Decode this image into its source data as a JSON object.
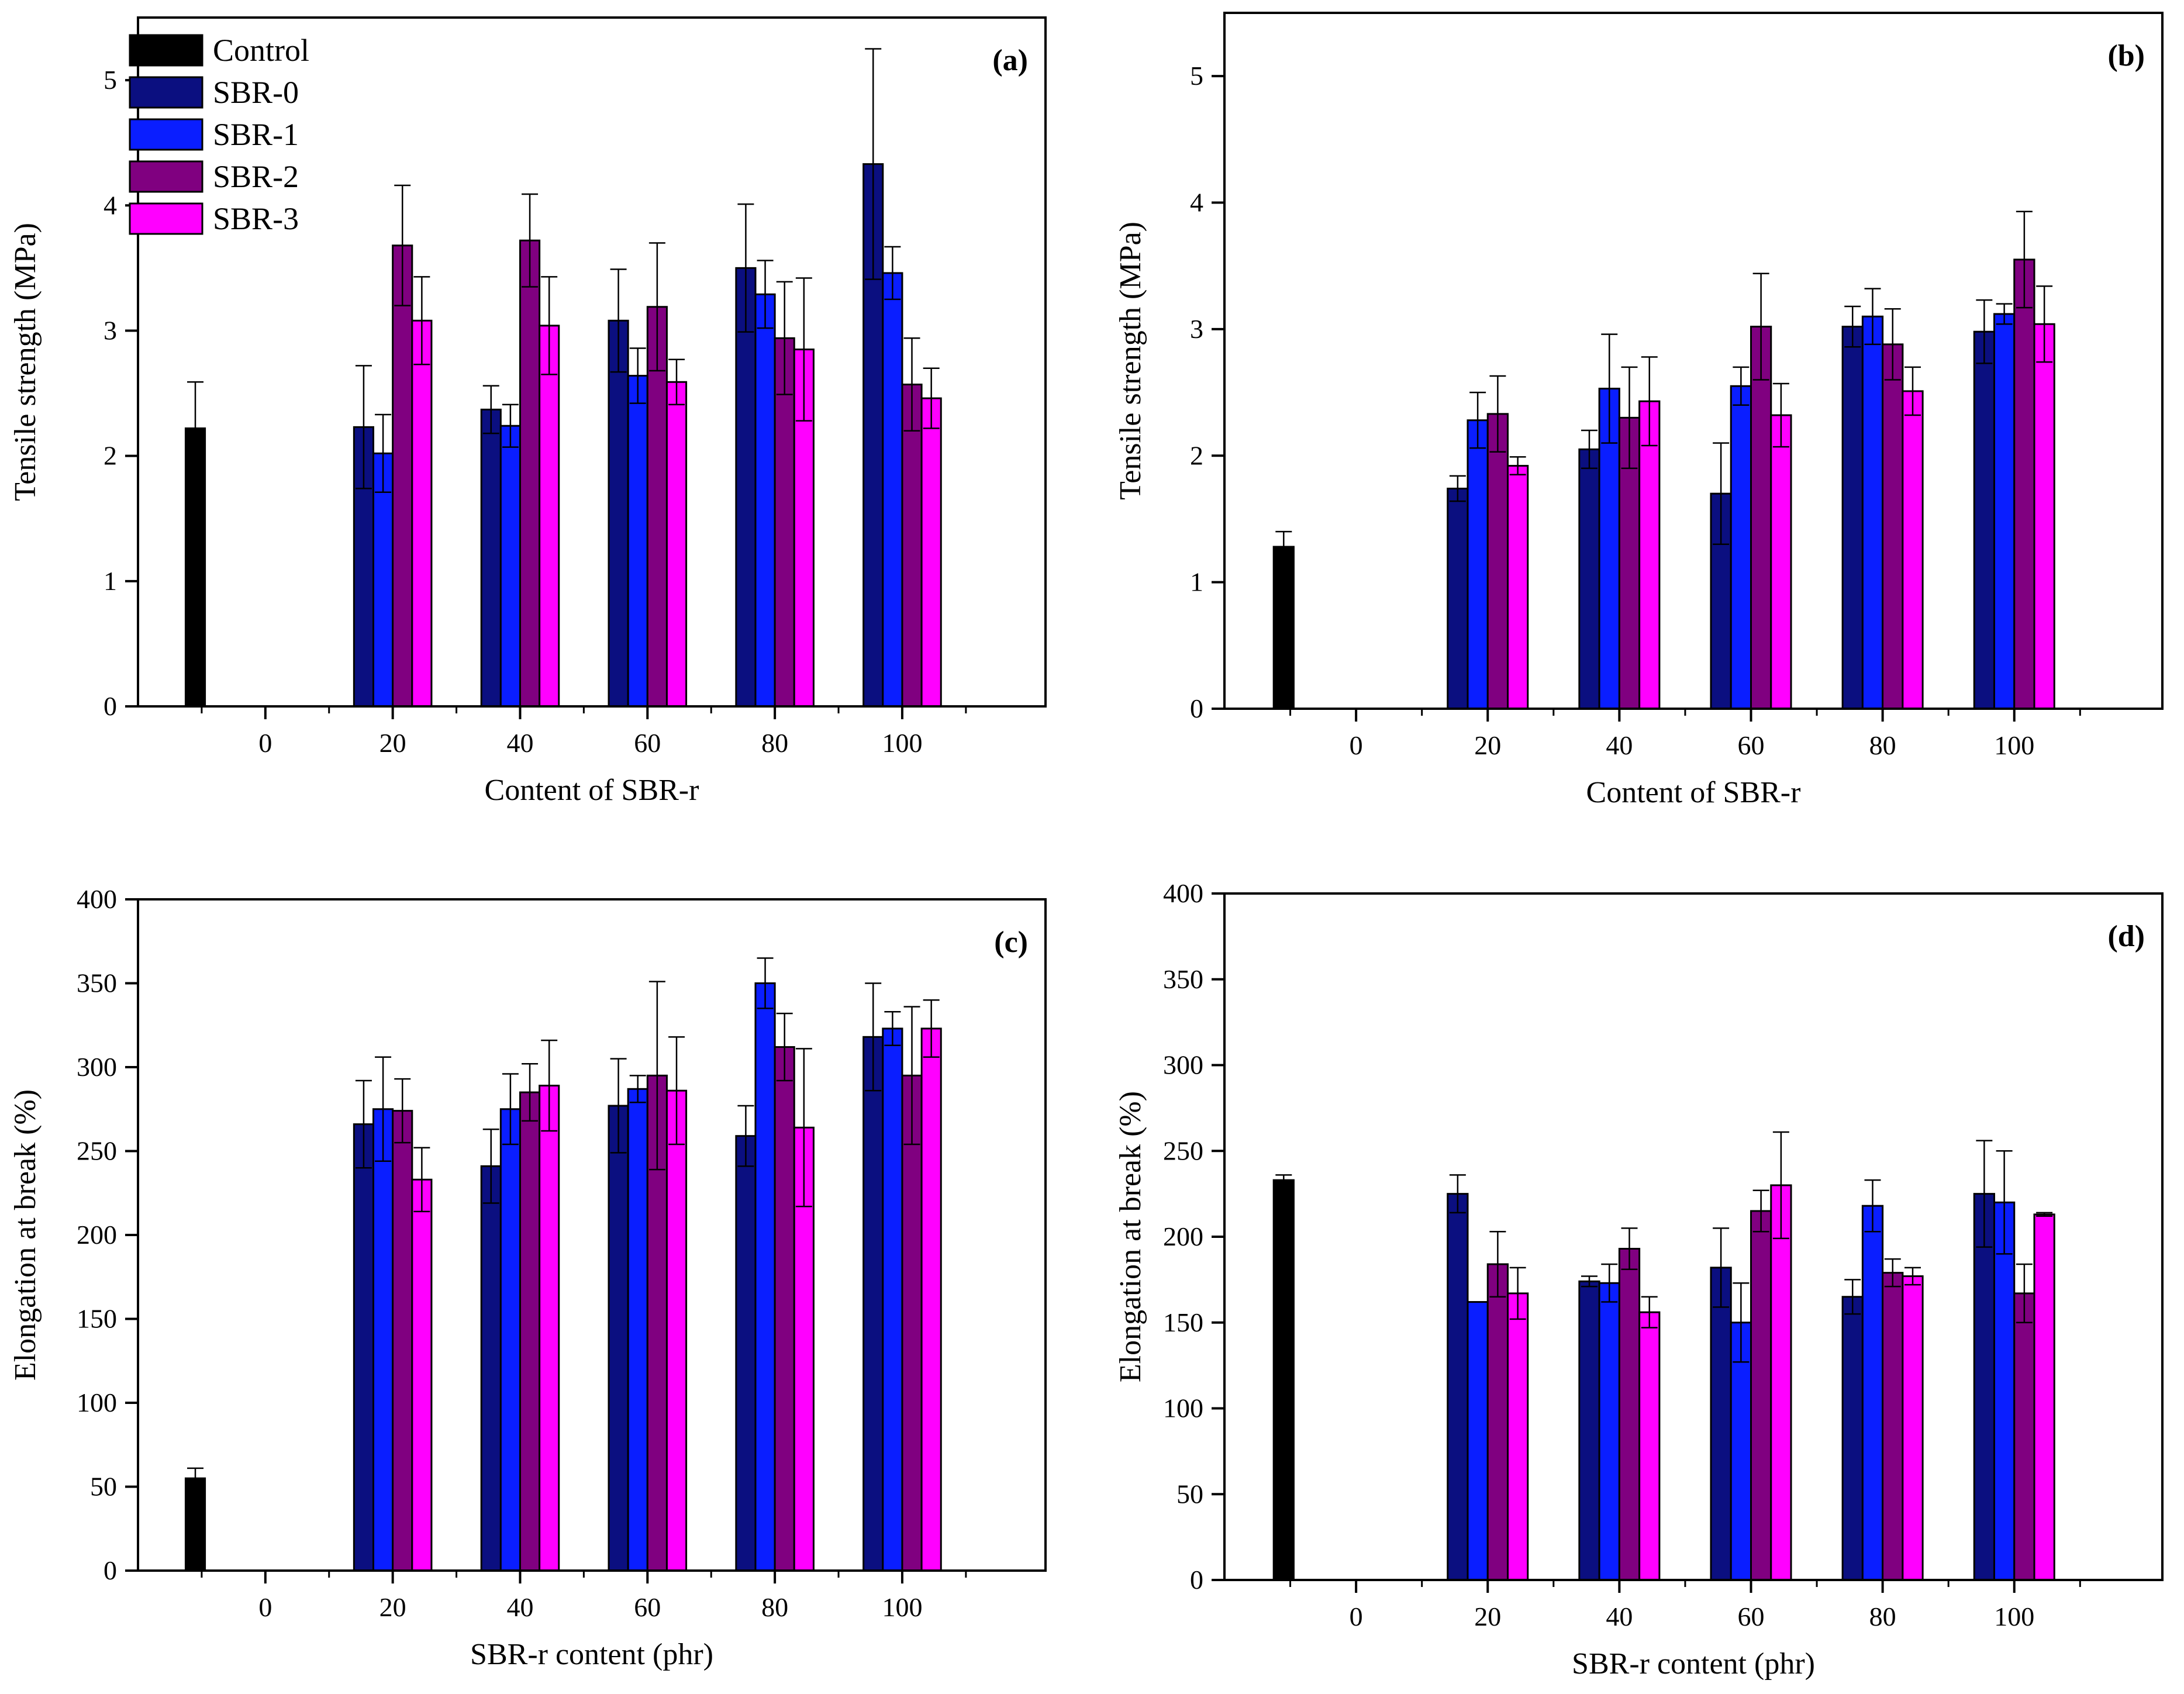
{
  "legend_entries": [
    {
      "name": "Control",
      "color": "#000000"
    },
    {
      "name": "SBR-0",
      "color": "#0b0f80"
    },
    {
      "name": "SBR-1",
      "color": "#0a1eff"
    },
    {
      "name": "SBR-2",
      "color": "#800080"
    },
    {
      "name": "SBR-3",
      "color": "#ff00ff"
    }
  ],
  "chart_data": [
    {
      "panel": "(a)",
      "type": "bar",
      "categories": [
        "0",
        "20",
        "40",
        "60",
        "80",
        "100"
      ],
      "xlabel": "Content of SBR-r",
      "ylabel": "Tensile strength (MPa)",
      "ylim": [
        0,
        5.5
      ],
      "yticks": [
        "0",
        "1",
        "2",
        "3",
        "4",
        "5"
      ],
      "control": {
        "value": 2.22,
        "err": 0.37
      },
      "series": [
        {
          "name": "SBR-0",
          "values": [
            null,
            2.23,
            2.37,
            3.08,
            3.5,
            4.33
          ],
          "errors": [
            null,
            0.49,
            0.19,
            0.41,
            0.51,
            0.92
          ]
        },
        {
          "name": "SBR-1",
          "values": [
            null,
            2.02,
            2.24,
            2.64,
            3.29,
            3.46
          ],
          "errors": [
            null,
            0.31,
            0.17,
            0.22,
            0.27,
            0.21
          ]
        },
        {
          "name": "SBR-2",
          "values": [
            null,
            3.68,
            3.72,
            3.19,
            2.94,
            2.57
          ],
          "errors": [
            null,
            0.48,
            0.37,
            0.51,
            0.45,
            0.37
          ]
        },
        {
          "name": "SBR-3",
          "values": [
            null,
            3.08,
            3.04,
            2.59,
            2.85,
            2.46
          ],
          "errors": [
            null,
            0.35,
            0.39,
            0.18,
            0.57,
            0.24
          ]
        }
      ]
    },
    {
      "panel": "(b)",
      "type": "bar",
      "categories": [
        "0",
        "20",
        "40",
        "60",
        "80",
        "100"
      ],
      "xlabel": "Content of SBR-r",
      "ylabel": "Tensile strength (MPa)",
      "ylim": [
        0,
        5.5
      ],
      "yticks": [
        "0",
        "1",
        "2",
        "3",
        "4",
        "5"
      ],
      "control": {
        "value": 1.28,
        "err": 0.12
      },
      "series": [
        {
          "name": "SBR-0",
          "values": [
            null,
            1.74,
            2.05,
            1.7,
            3.02,
            2.98
          ],
          "errors": [
            null,
            0.1,
            0.15,
            0.4,
            0.16,
            0.25
          ]
        },
        {
          "name": "SBR-1",
          "values": [
            null,
            2.28,
            2.53,
            2.55,
            3.1,
            3.12
          ],
          "errors": [
            null,
            0.22,
            0.43,
            0.15,
            0.22,
            0.08
          ]
        },
        {
          "name": "SBR-2",
          "values": [
            null,
            2.33,
            2.3,
            3.02,
            2.88,
            3.55
          ],
          "errors": [
            null,
            0.3,
            0.4,
            0.42,
            0.28,
            0.38
          ]
        },
        {
          "name": "SBR-3",
          "values": [
            null,
            1.92,
            2.43,
            2.32,
            2.51,
            3.04
          ],
          "errors": [
            null,
            0.07,
            0.35,
            0.25,
            0.19,
            0.3
          ]
        }
      ]
    },
    {
      "panel": "(c)",
      "type": "bar",
      "categories": [
        "0",
        "20",
        "40",
        "60",
        "80",
        "100"
      ],
      "xlabel": "SBR-r content (phr)",
      "ylabel": "Elongation at break (%)",
      "ylim": [
        0,
        400
      ],
      "yticks": [
        "0",
        "50",
        "100",
        "150",
        "200",
        "250",
        "300",
        "350",
        "400"
      ],
      "control": {
        "value": 55,
        "err": 6
      },
      "series": [
        {
          "name": "SBR-0",
          "values": [
            null,
            266,
            241,
            277,
            259,
            318
          ],
          "errors": [
            null,
            26,
            22,
            28,
            18,
            32
          ]
        },
        {
          "name": "SBR-1",
          "values": [
            null,
            275,
            275,
            287,
            350,
            323
          ],
          "errors": [
            null,
            31,
            21,
            8,
            15,
            10
          ]
        },
        {
          "name": "SBR-2",
          "values": [
            null,
            274,
            285,
            295,
            312,
            295
          ],
          "errors": [
            null,
            19,
            17,
            56,
            20,
            41
          ]
        },
        {
          "name": "SBR-3",
          "values": [
            null,
            233,
            289,
            286,
            264,
            323
          ],
          "errors": [
            null,
            19,
            27,
            32,
            47,
            17
          ]
        }
      ]
    },
    {
      "panel": "(d)",
      "type": "bar",
      "categories": [
        "0",
        "20",
        "40",
        "60",
        "80",
        "100"
      ],
      "xlabel": "SBR-r content (phr)",
      "ylabel": "Elongation at break (%)",
      "ylim": [
        0,
        400
      ],
      "yticks": [
        "0",
        "50",
        "100",
        "150",
        "200",
        "250",
        "300",
        "350",
        "400"
      ],
      "control": {
        "value": 233,
        "err": 3
      },
      "series": [
        {
          "name": "SBR-0",
          "values": [
            null,
            225,
            174,
            182,
            165,
            225
          ],
          "errors": [
            null,
            11,
            3,
            23,
            10,
            31
          ]
        },
        {
          "name": "SBR-1",
          "values": [
            null,
            162,
            173,
            150,
            218,
            220
          ],
          "errors": [
            null,
            0,
            11,
            23,
            15,
            30
          ]
        },
        {
          "name": "SBR-2",
          "values": [
            null,
            184,
            193,
            215,
            179,
            167
          ],
          "errors": [
            null,
            19,
            12,
            12,
            8,
            17
          ]
        },
        {
          "name": "SBR-3",
          "values": [
            null,
            167,
            156,
            230,
            177,
            213
          ],
          "errors": [
            null,
            15,
            9,
            31,
            5,
            1
          ]
        }
      ]
    }
  ]
}
